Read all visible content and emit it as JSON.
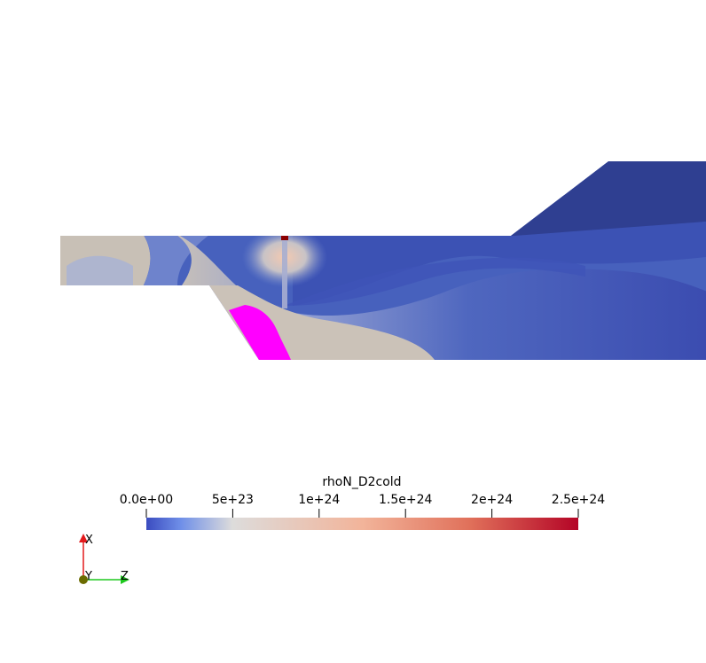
{
  "colorbar": {
    "title": "rhoN_D2cold",
    "ticks": [
      "0.0e+00",
      "5e+23",
      "1e+24",
      "1.5e+24",
      "2e+24",
      "2.5e+24"
    ],
    "range": [
      0,
      2.5e+24
    ],
    "colormap": [
      "#3b4cc0",
      "#dddddd",
      "#b40426"
    ]
  },
  "axes": {
    "x_label": "X",
    "y_label": "Y",
    "z_label": "Z",
    "x_color": "#e31a1c",
    "y_color": "#6b6b00",
    "z_color": "#1ec81e"
  },
  "colors": {
    "low": "#3b4cc0",
    "mid": "#c9c1b8",
    "deep": "#2f3f91",
    "highlight": "#ff00ff",
    "hotspot": "#8b0000"
  }
}
